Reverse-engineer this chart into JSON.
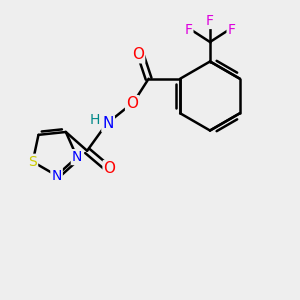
{
  "background_color": "#eeeeee",
  "bond_color": "#000000",
  "atom_colors": {
    "O": "#ff0000",
    "N": "#0000ff",
    "S": "#cccc00",
    "F": "#dd00dd",
    "H": "#008888",
    "C": "#000000"
  },
  "figsize": [
    3.0,
    3.0
  ],
  "dpi": 100,
  "xlim": [
    0,
    10
  ],
  "ylim": [
    0,
    10
  ]
}
